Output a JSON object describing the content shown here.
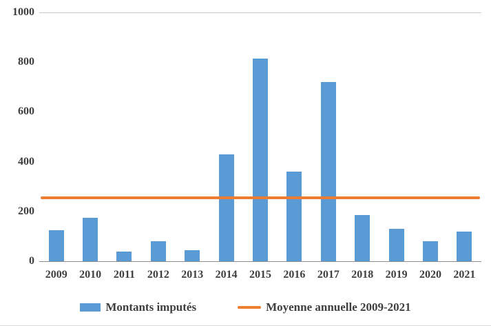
{
  "chart_data": {
    "type": "bar",
    "categories": [
      "2009",
      "2010",
      "2011",
      "2012",
      "2013",
      "2014",
      "2015",
      "2016",
      "2017",
      "2018",
      "2019",
      "2020",
      "2021"
    ],
    "series": [
      {
        "name": "Montants imputés",
        "type": "bar",
        "color": "#5B9BD5",
        "values": [
          125,
          175,
          40,
          80,
          45,
          430,
          815,
          360,
          720,
          185,
          130,
          80,
          120
        ]
      },
      {
        "name": "Moyenne annuelle 2009-2021",
        "type": "line",
        "color": "#ED7D31",
        "value": 255
      }
    ],
    "title": "",
    "xlabel": "",
    "ylabel": "",
    "ylim": [
      0,
      1000
    ],
    "yticks": [
      0,
      200,
      400,
      600,
      800,
      1000
    ],
    "grid": "top-border-only",
    "legend_position": "bottom"
  }
}
